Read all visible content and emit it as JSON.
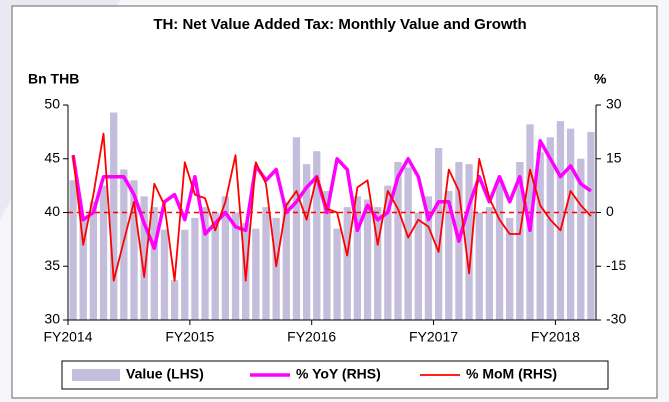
{
  "chart_data": {
    "type": "bar_line",
    "title": "TH: Net Value Added Tax: Monthly Value and Growth",
    "y_label": "Bn THB",
    "y2_label": "%",
    "categories": [
      "FY2014",
      null,
      null,
      null,
      null,
      null,
      null,
      null,
      null,
      null,
      null,
      null,
      "FY2015",
      null,
      null,
      null,
      null,
      null,
      null,
      null,
      null,
      null,
      null,
      null,
      "FY2016",
      null,
      null,
      null,
      null,
      null,
      null,
      null,
      null,
      null,
      null,
      null,
      "FY2017",
      null,
      null,
      null,
      null,
      null,
      null,
      null,
      null,
      null,
      null,
      null,
      "FY2018",
      null,
      null,
      null
    ],
    "ylim": [
      30,
      50
    ],
    "yticks": [
      30,
      35,
      40,
      45,
      50
    ],
    "y2lim": [
      -30,
      30
    ],
    "y2ticks": [
      -30,
      -15,
      0,
      15,
      30
    ],
    "reference_line": {
      "axis": "y2",
      "value": 0,
      "color": "#ff0000"
    },
    "series": [
      {
        "name": "Value (LHS)",
        "type": "bar",
        "axis": "y",
        "color": "#c4bedc",
        "values": [
          43,
          39.5,
          41,
          42.5,
          49.3,
          44,
          43,
          41.5,
          40.5,
          38.4,
          33.7,
          38.4,
          39.5,
          40.5,
          40,
          41.5,
          40,
          39,
          38.5,
          40.5,
          39.5,
          41,
          47,
          44.5,
          45.7,
          42,
          38.5,
          40.5,
          41.5,
          41.2,
          40.5,
          42.5,
          44.7,
          44.2,
          40,
          41.5,
          46,
          42,
          44.7,
          44.5,
          40,
          40.5,
          43,
          39.5,
          44.7,
          48.2,
          45.6,
          47,
          48.5,
          47.8,
          45,
          47.5
        ]
      },
      {
        "name": "% YoY (RHS)",
        "type": "line",
        "axis": "y2",
        "color": "#ff00ff",
        "values": [
          16,
          -2,
          0,
          10,
          10,
          10,
          5,
          -3,
          -10,
          3,
          5,
          -2,
          10,
          -6,
          -3,
          0,
          -4,
          -5,
          13,
          9,
          12,
          0,
          3,
          7,
          10,
          0,
          15,
          12,
          -5,
          2,
          -2,
          0,
          10,
          15,
          10,
          -2,
          3,
          3,
          -8,
          2,
          10,
          3,
          10,
          3,
          10,
          -5,
          20,
          15,
          10,
          13,
          8,
          6
        ]
      },
      {
        "name": "% MoM (RHS)",
        "type": "line",
        "axis": "y2",
        "color": "#ff0000",
        "values": [
          16,
          -9,
          5,
          22,
          -19,
          -8,
          3,
          -18,
          8,
          2,
          -19,
          14,
          5,
          4,
          -5,
          3,
          16,
          -19,
          14,
          8,
          -15,
          2,
          6,
          -2,
          10,
          1,
          0,
          -12,
          7,
          9,
          -9,
          6,
          1,
          -7,
          -2,
          -4,
          -11,
          12,
          6,
          -17,
          15,
          4,
          -2,
          -6,
          -6,
          12,
          2,
          -2,
          -5,
          6,
          2,
          -1
        ]
      }
    ]
  }
}
